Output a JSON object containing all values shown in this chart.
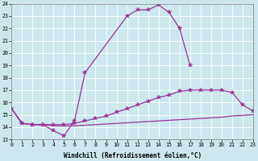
{
  "xlabel": "Windchill (Refroidissement éolien,°C)",
  "bg_color": "#cce8ee",
  "grid_color": "#ffffff",
  "line_color": "#993399",
  "xmin": 0,
  "xmax": 23,
  "ymin": 13,
  "ymax": 24,
  "curve1_x": [
    0,
    1,
    2,
    3,
    4,
    5,
    6,
    7,
    11,
    12,
    13,
    14,
    15,
    16,
    17
  ],
  "curve1_y": [
    15.5,
    14.3,
    14.2,
    14.2,
    13.7,
    13.3,
    14.5,
    18.4,
    23.0,
    23.5,
    23.5,
    23.9,
    23.3,
    22.0,
    19.0
  ],
  "curve2_x": [
    0,
    1,
    2,
    3,
    4,
    5,
    6,
    7,
    8,
    9,
    10,
    11,
    12,
    13,
    14,
    15,
    16,
    17,
    18,
    19,
    20,
    21,
    22,
    23
  ],
  "curve2_y": [
    15.5,
    14.3,
    14.2,
    14.2,
    14.2,
    14.2,
    14.3,
    14.5,
    14.7,
    14.9,
    15.2,
    15.5,
    15.8,
    16.1,
    16.4,
    16.6,
    16.9,
    17.0,
    17.0,
    17.0,
    17.0,
    16.8,
    15.8,
    15.3
  ],
  "curve3_x": [
    0,
    1,
    2,
    3,
    4,
    5,
    6,
    7,
    8,
    9,
    10,
    11,
    12,
    13,
    14,
    15,
    16,
    17,
    18,
    19,
    20,
    21,
    22,
    23
  ],
  "curve3_y": [
    15.5,
    14.3,
    14.2,
    14.2,
    14.1,
    14.1,
    14.1,
    14.15,
    14.2,
    14.25,
    14.3,
    14.35,
    14.4,
    14.45,
    14.5,
    14.55,
    14.6,
    14.65,
    14.7,
    14.75,
    14.8,
    14.9,
    14.95,
    15.0
  ]
}
